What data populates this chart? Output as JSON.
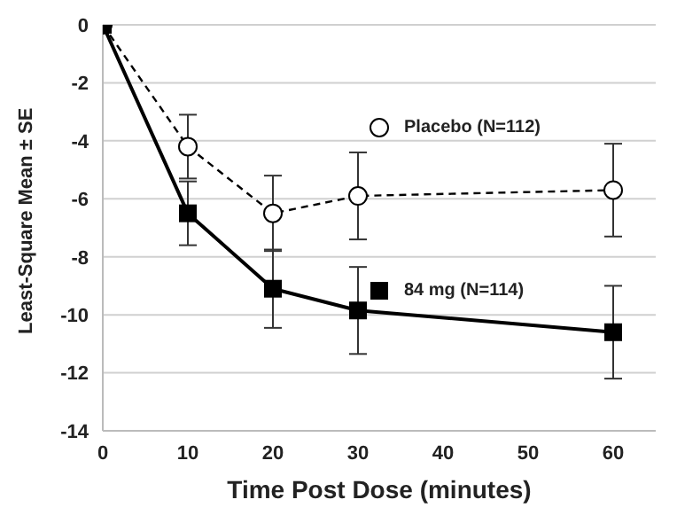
{
  "chart_data": {
    "type": "line",
    "xlabel": "Time Post Dose (minutes)",
    "ylabel": "Least-Square Mean ± SE",
    "x": [
      0,
      10,
      20,
      30,
      60
    ],
    "xlim": [
      0,
      65
    ],
    "xticks": [
      0,
      10,
      20,
      30,
      40,
      50,
      60
    ],
    "ylim": [
      -14,
      0
    ],
    "yticks": [
      -14,
      -12,
      -10,
      -8,
      -6,
      -4,
      -2,
      0
    ],
    "grid": "y",
    "legend": "right",
    "series": [
      {
        "name": "Placebo (N=112)",
        "color": "#000000",
        "marker": "circle",
        "line_style": "dashed",
        "values": [
          0,
          -4.2,
          -6.5,
          -5.9,
          -5.7
        ],
        "errors": [
          null,
          1.1,
          1.3,
          1.5,
          1.6
        ]
      },
      {
        "name": "84 mg (N=114)",
        "color": "#000000",
        "marker": "square",
        "line_style": "solid",
        "values": [
          0,
          -6.5,
          -9.1,
          -9.85,
          -10.6
        ],
        "errors": [
          null,
          1.1,
          1.35,
          1.5,
          1.6
        ]
      }
    ]
  }
}
